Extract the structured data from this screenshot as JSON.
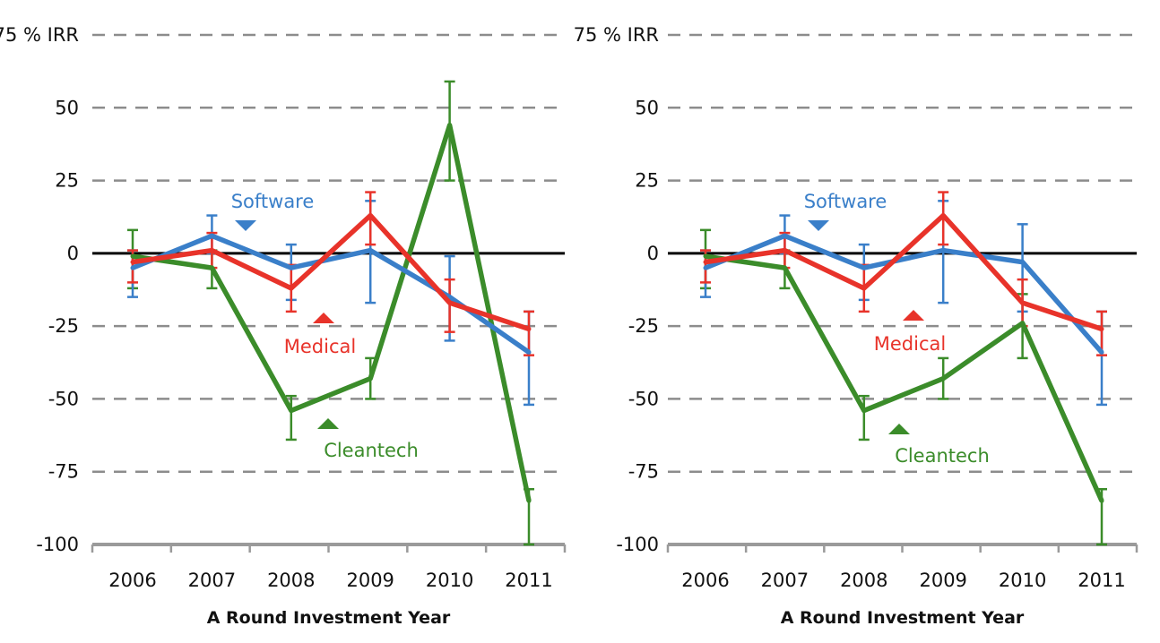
{
  "chart_data": [
    {
      "type": "line",
      "title": "",
      "ylabel": "% IRR",
      "xlabel": "A Round Investment Year",
      "ylim": [
        -100,
        75
      ],
      "yticks": [
        75,
        50,
        25,
        0,
        -25,
        -50,
        -75,
        -100
      ],
      "ytick_labels": [
        "75 % IRR",
        "50",
        "25",
        "0",
        "-25",
        "-50",
        "-75",
        "-100"
      ],
      "categories": [
        "2006",
        "2007",
        "2008",
        "2009",
        "2010",
        "2011"
      ],
      "grid": "dashed-horizontal",
      "series": [
        {
          "name": "Software",
          "color": "#3a7fc9",
          "label_pointer": "down",
          "values": [
            -5,
            6,
            -5,
            1,
            -15,
            -34
          ],
          "err_low": [
            -15,
            0,
            -16,
            -17,
            -30,
            -52
          ],
          "err_high": [
            1,
            13,
            3,
            18,
            -1,
            -20
          ]
        },
        {
          "name": "Medical",
          "color": "#e8332a",
          "label_pointer": "up",
          "values": [
            -3,
            1,
            -12,
            13,
            -17,
            -26
          ],
          "err_low": [
            -10,
            -5,
            -20,
            3,
            -27,
            -35
          ],
          "err_high": [
            1,
            7,
            -4,
            21,
            -9,
            -20
          ]
        },
        {
          "name": "Cleantech",
          "color": "#3b8c2a",
          "label_pointer": "up",
          "values": [
            -1,
            -5,
            -54,
            -43,
            44,
            -85
          ],
          "err_low": [
            -12,
            -12,
            -64,
            -50,
            25,
            -100
          ],
          "err_high": [
            8,
            1,
            -49,
            -36,
            59,
            -81
          ]
        }
      ]
    },
    {
      "type": "line",
      "title": "",
      "ylabel": "% IRR",
      "xlabel": "A Round Investment Year",
      "ylim": [
        -100,
        75
      ],
      "yticks": [
        75,
        50,
        25,
        0,
        -25,
        -50,
        -75,
        -100
      ],
      "ytick_labels": [
        "75 % IRR",
        "50",
        "25",
        "0",
        "-25",
        "-50",
        "-75",
        "-100"
      ],
      "categories": [
        "2006",
        "2007",
        "2008",
        "2009",
        "2010",
        "2011"
      ],
      "grid": "dashed-horizontal",
      "series": [
        {
          "name": "Software",
          "color": "#3a7fc9",
          "label_pointer": "down",
          "values": [
            -5,
            6,
            -5,
            1,
            -3,
            -34
          ],
          "err_low": [
            -15,
            0,
            -16,
            -17,
            -20,
            -52
          ],
          "err_high": [
            1,
            13,
            3,
            18,
            10,
            -20
          ]
        },
        {
          "name": "Medical",
          "color": "#e8332a",
          "label_pointer": "up",
          "values": [
            -3,
            1,
            -12,
            13,
            -17,
            -26
          ],
          "err_low": [
            -10,
            -5,
            -20,
            3,
            -25,
            -35
          ],
          "err_high": [
            1,
            7,
            -4,
            21,
            -9,
            -20
          ]
        },
        {
          "name": "Cleantech",
          "color": "#3b8c2a",
          "label_pointer": "up",
          "values": [
            -1,
            -5,
            -54,
            -43,
            -24,
            -85
          ],
          "err_low": [
            -12,
            -12,
            -64,
            -50,
            -36,
            -100
          ],
          "err_high": [
            8,
            1,
            -49,
            -36,
            -14,
            -81
          ]
        }
      ]
    }
  ]
}
